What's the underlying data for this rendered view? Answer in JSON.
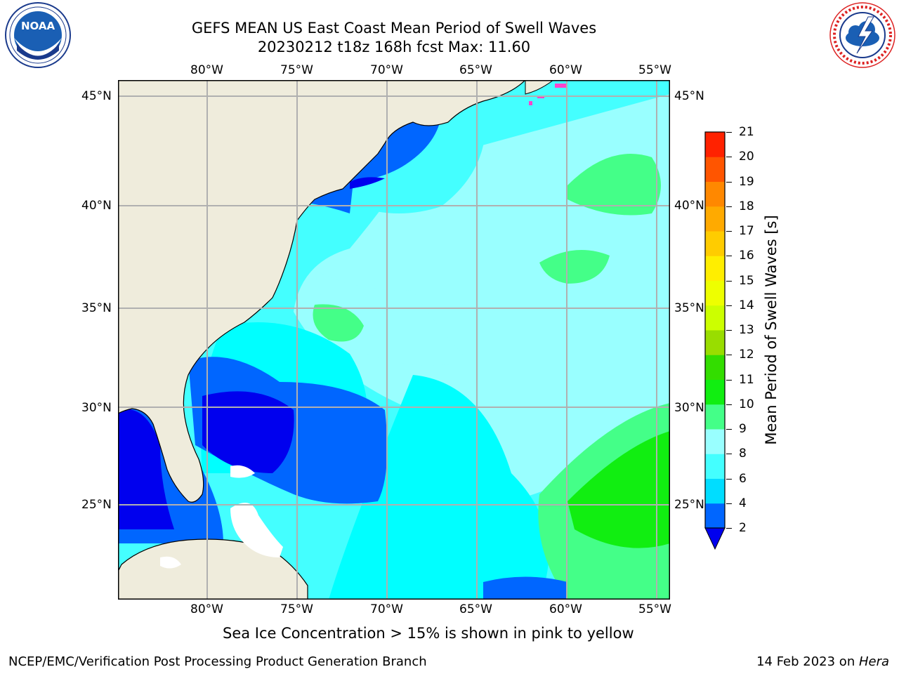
{
  "header": {
    "title_line1": "GEFS MEAN US East Coast Mean Period of Swell Waves",
    "title_line2": "20230212 t18z 168h fcst   Max: 11.60"
  },
  "logos": {
    "left": {
      "text": "NOAA",
      "ring_text": "NATIONAL OCEANIC AND ATMOSPHERIC ADMINISTRATION · U.S. DEPARTMENT OF COMMERCE",
      "icon": "noaa-logo"
    },
    "right": {
      "ring_text": "NATIONAL WEATHER SERVICE",
      "icon": "nws-logo"
    }
  },
  "map": {
    "lon_labels": [
      "80°W",
      "75°W",
      "70°W",
      "65°W",
      "60°W",
      "55°W"
    ],
    "lat_labels": [
      "45°N",
      "40°N",
      "35°N",
      "30°N",
      "25°N"
    ],
    "lon_range": [
      -85,
      -54.2
    ],
    "lat_range": [
      20.5,
      45.8
    ],
    "colors": {
      "land": "#efecdc",
      "grid": "#b0b0b0",
      "ice": "#ff44cc"
    }
  },
  "colorbar": {
    "label": "Mean Period of Swell Waves [s]",
    "ticks": [
      "21",
      "20",
      "19",
      "18",
      "17",
      "16",
      "15",
      "14",
      "13",
      "12",
      "11",
      "10",
      "9",
      "8",
      "6",
      "4",
      "2"
    ],
    "levels": [
      2,
      4,
      6,
      8,
      9,
      10,
      11,
      12,
      13,
      14,
      15,
      16,
      17,
      18,
      19,
      20,
      21
    ],
    "colors": [
      "#0066ff",
      "#00ddff",
      "#44ffff",
      "#99ffff",
      "#44ff88",
      "#11ee11",
      "#33dd00",
      "#99dd00",
      "#ccff00",
      "#eeff00",
      "#ffee00",
      "#ffcc00",
      "#ffaa00",
      "#ff8800",
      "#ff5500",
      "#ff2200"
    ],
    "extend_color": "#0000ee"
  },
  "caption": "Sea Ice Concentration > 15% is shown in pink to yellow",
  "footer": {
    "left": "NCEP/EMC/Verification Post Processing Product Generation Branch",
    "right_date": "14 Feb 2023 on ",
    "right_machine": "Hera"
  }
}
